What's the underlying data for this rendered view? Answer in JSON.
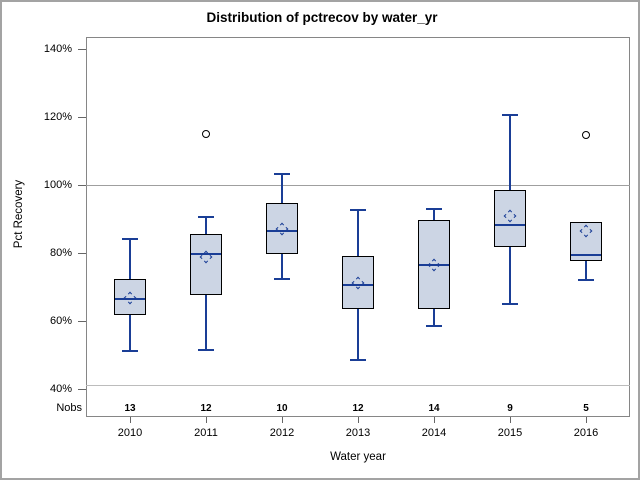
{
  "title": "Distribution of pctrecov by water_yr",
  "axes": {
    "ylabel": "Pct Recovery",
    "xlabel": "Water year",
    "nobs_label": "Nobs"
  },
  "colors": {
    "box_fill": "#ccd5e4",
    "box_border": "#000000",
    "line_blue": "#1a3e96",
    "outlier": "#000000",
    "frame": "#868686",
    "refline": "#9f9f9f"
  },
  "chart_data": {
    "type": "boxplot",
    "title": "Distribution of pctrecov by water_yr",
    "xlabel": "Water year",
    "ylabel": "Pct Recovery",
    "ylim": [
      31.7,
      143.4
    ],
    "y_ticks": [
      40,
      60,
      80,
      100,
      120,
      140
    ],
    "y_tick_suffix": "%",
    "refline": 100,
    "grid": false,
    "nobs_row_label": "Nobs",
    "categories": [
      "2010",
      "2011",
      "2012",
      "2013",
      "2014",
      "2015",
      "2016"
    ],
    "nobs": [
      13,
      12,
      10,
      12,
      14,
      9,
      5
    ],
    "series": [
      {
        "category": "2010",
        "low": 51.0,
        "q1": 61.6,
        "median": 66.4,
        "mean": 66.6,
        "q3": 72.2,
        "high": 84.4,
        "outliers": []
      },
      {
        "category": "2011",
        "low": 51.4,
        "q1": 67.7,
        "median": 79.7,
        "mean": 78.8,
        "q3": 85.5,
        "high": 90.9,
        "outliers": [
          115.0
        ]
      },
      {
        "category": "2012",
        "low": 72.4,
        "q1": 79.7,
        "median": 86.3,
        "mean": 87.1,
        "q3": 94.6,
        "high": 103.4,
        "outliers": []
      },
      {
        "category": "2013",
        "low": 48.4,
        "q1": 63.6,
        "median": 70.4,
        "mean": 71.0,
        "q3": 79.1,
        "high": 92.7,
        "outliers": []
      },
      {
        "category": "2014",
        "low": 58.5,
        "q1": 63.4,
        "median": 76.3,
        "mean": 76.3,
        "q3": 89.7,
        "high": 93.1,
        "outliers": []
      },
      {
        "category": "2015",
        "low": 64.9,
        "q1": 81.7,
        "median": 88.2,
        "mean": 90.8,
        "q3": 98.5,
        "high": 120.7,
        "outliers": []
      },
      {
        "category": "2016",
        "low": 71.9,
        "q1": 77.3,
        "median": 79.3,
        "mean": 86.5,
        "q3": 88.9,
        "high": 88.9,
        "outliers": [
          114.7
        ]
      }
    ]
  }
}
